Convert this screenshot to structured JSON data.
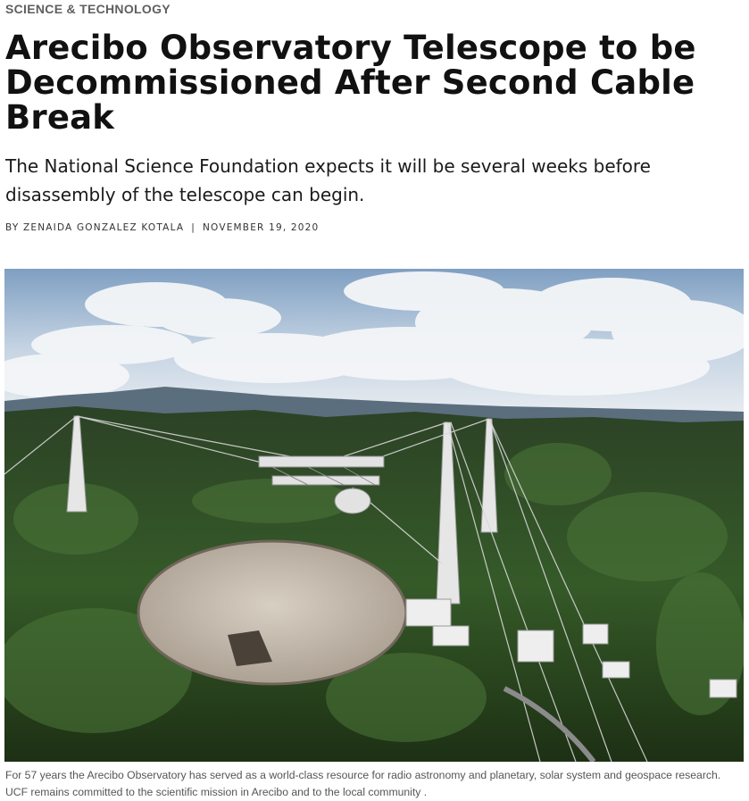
{
  "article": {
    "category": "SCIENCE & TECHNOLOGY",
    "headline": "Arecibo Observatory Telescope to be Decommissioned After Second Cable Break",
    "dek": "The National Science Foundation expects it will be several weeks before disassembly of the telescope can begin.",
    "byline": {
      "author": "BY ZENAIDA GONZALEZ KOTALA",
      "separator": "|",
      "date": "NOVEMBER 19, 2020"
    },
    "image": {
      "caption": "For 57 years the Arecibo Observatory has served as a world-class resource for radio astronomy and planetary, solar system and geospace research. UCF remains committed to the scientific mission in Arecibo and to the local community ."
    }
  },
  "colors": {
    "sky_top": "#7f9fc2",
    "sky_bottom": "#d9e3ee",
    "forest_dark": "#1f3318",
    "forest_mid": "#3f6430",
    "dish": "#c9bfb2"
  }
}
